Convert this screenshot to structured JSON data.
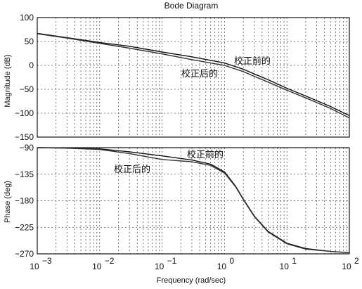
{
  "chart_data": {
    "type": "line",
    "title": "Bode Diagram",
    "xlabel": "Frequency  (rad/sec)",
    "x_scale": "log",
    "xlim": [
      0.001,
      100
    ],
    "x_tick_labels": [
      "10^-3",
      "10^-2",
      "10^-1",
      "10^0",
      "10^1",
      "10^2"
    ],
    "panels": [
      {
        "id": "magnitude",
        "ylabel": "Magnitude (dB)",
        "ylim": [
          -150,
          100
        ],
        "y_ticks": [
          100,
          50,
          0,
          -50,
          -100,
          -150
        ],
        "annotations": [
          "校正前的",
          "校正后的"
        ],
        "series": [
          {
            "name": "校正前的",
            "color": "#111111",
            "x": [
              0.001,
              0.003,
              0.01,
              0.03,
              0.1,
              0.3,
              1,
              2,
              3,
              5,
              10,
              20,
              50,
              100
            ],
            "y": [
              67,
              58,
              48,
              40,
              28,
              18,
              5,
              -8,
              -18,
              -30,
              -48,
              -64,
              -86,
              -105
            ]
          },
          {
            "name": "校正后的",
            "color": "#333333",
            "x": [
              0.001,
              0.003,
              0.01,
              0.03,
              0.1,
              0.3,
              1,
              2,
              3,
              5,
              10,
              20,
              50,
              100
            ],
            "y": [
              66,
              57,
              46,
              36,
              24,
              12,
              0,
              -13,
              -23,
              -35,
              -52,
              -68,
              -90,
              -110
            ]
          }
        ]
      },
      {
        "id": "phase",
        "ylabel": "Phase (deg)",
        "ylim": [
          -270,
          -90
        ],
        "y_ticks": [
          -90,
          -135,
          -180,
          -225,
          -270
        ],
        "annotations": [
          "校正前的",
          "校正后的"
        ],
        "series": [
          {
            "name": "校正前的",
            "color": "#111111",
            "x": [
              0.001,
              0.003,
              0.01,
              0.03,
              0.1,
              0.3,
              0.6,
              1,
              1.5,
              2,
              3,
              5,
              10,
              20,
              50,
              100
            ],
            "y": [
              -90,
              -90.5,
              -92,
              -97,
              -104,
              -111,
              -118,
              -131,
              -155,
              -177,
              -206,
              -232,
              -252,
              -261,
              -266,
              -268
            ]
          },
          {
            "name": "校正后的",
            "color": "#333333",
            "x": [
              0.001,
              0.003,
              0.01,
              0.03,
              0.1,
              0.3,
              0.6,
              1,
              1.5,
              2,
              3,
              5,
              10,
              20,
              50,
              100
            ],
            "y": [
              -90,
              -91,
              -93,
              -100,
              -110,
              -114,
              -120,
              -133,
              -156,
              -178,
              -207,
              -233,
              -253,
              -262,
              -266,
              -268
            ]
          }
        ]
      }
    ]
  }
}
